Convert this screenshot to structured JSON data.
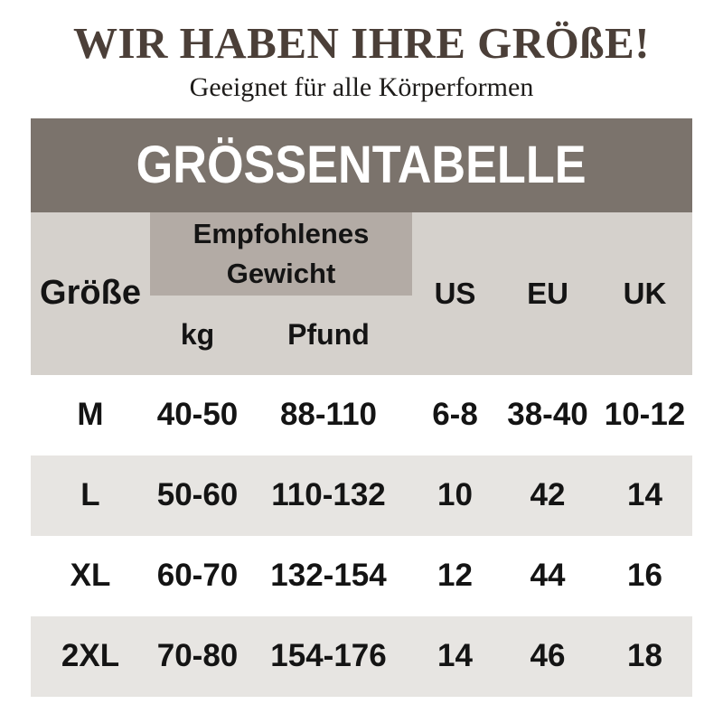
{
  "header": {
    "title": "WIR HABEN IHRE GRÖßE!",
    "subtitle": "Geeignet für alle Körperformen"
  },
  "banner": {
    "label": "GRÖSSENTABELLE"
  },
  "size_table": {
    "columns": {
      "size": "Größe",
      "weight_group": "Empfohlenes Gewicht",
      "kg": "kg",
      "pounds": "Pfund",
      "us": "US",
      "eu": "EU",
      "uk": "UK"
    },
    "rows": [
      {
        "size": "M",
        "kg": "40-50",
        "pounds": "88-110",
        "us": "6-8",
        "eu": "38-40",
        "uk": "10-12"
      },
      {
        "size": "L",
        "kg": "50-60",
        "pounds": "110-132",
        "us": "10",
        "eu": "42",
        "uk": "14"
      },
      {
        "size": "XL",
        "kg": "60-70",
        "pounds": "132-154",
        "us": "12",
        "eu": "44",
        "uk": "16"
      },
      {
        "size": "2XL",
        "kg": "70-80",
        "pounds": "154-176",
        "us": "14",
        "eu": "46",
        "uk": "18"
      }
    ]
  },
  "chart_data": {
    "type": "table",
    "title": "GRÖSSENTABELLE",
    "columns": [
      "Größe",
      "Empfohlenes Gewicht kg",
      "Empfohlenes Gewicht Pfund",
      "US",
      "EU",
      "UK"
    ],
    "rows": [
      [
        "M",
        "40-50",
        "88-110",
        "6-8",
        "38-40",
        "10-12"
      ],
      [
        "L",
        "50-60",
        "110-132",
        "10",
        "42",
        "14"
      ],
      [
        "XL",
        "60-70",
        "132-154",
        "12",
        "44",
        "16"
      ],
      [
        "2XL",
        "70-80",
        "154-176",
        "14",
        "46",
        "18"
      ]
    ]
  },
  "colors": {
    "title_brown": "#4b3f38",
    "banner_bg": "#7b736c",
    "banner_text": "#ffffff",
    "header_bg": "#d5d1cc",
    "weight_box_bg": "#b3aba5",
    "alt_row_bg": "#e7e5e2",
    "row_bg": "#ffffff",
    "text_black": "#141414"
  }
}
